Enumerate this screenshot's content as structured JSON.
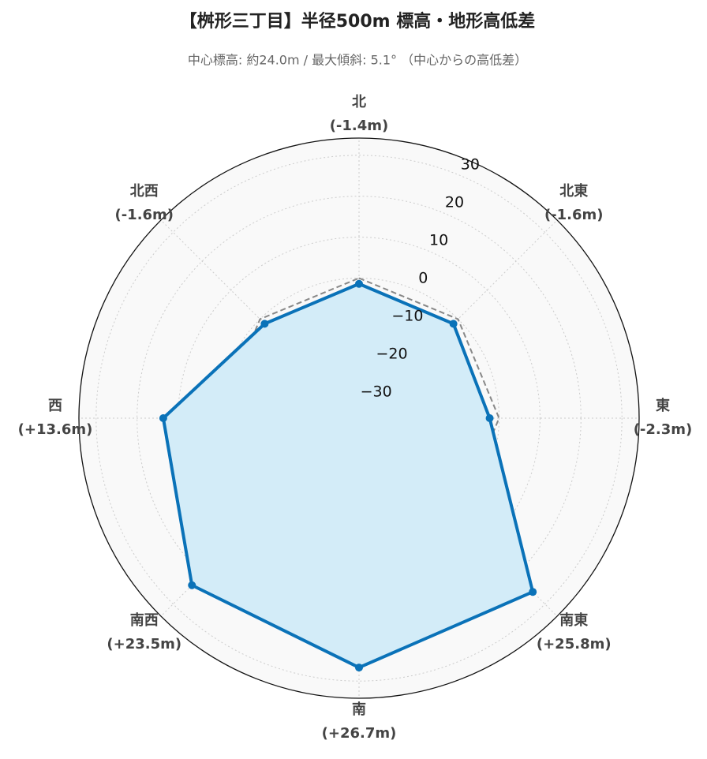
{
  "chart_data": {
    "type": "radar",
    "title": "【桝形三丁目】半径500m 標高・地形高低差",
    "subtitle": "中心標高: 約24.0m / 最大傾斜: 5.1° （中心からの高低差）",
    "categories": [
      "北",
      "北東",
      "東",
      "南東",
      "南",
      "南西",
      "西",
      "北西"
    ],
    "series": [
      {
        "color": "#0a72b8",
        "fill": "#d3ecf8",
        "values": [
          -1.4,
          -1.6,
          -2.3,
          25.8,
          26.7,
          23.5,
          13.6,
          -1.6
        ],
        "value_labels": [
          "(-1.4m)",
          "(-1.6m)",
          "(-2.3m)",
          "(+25.8m)",
          "(+26.7m)",
          "(+23.5m)",
          "(+13.6m)",
          "(-1.6m)"
        ]
      }
    ],
    "ylim": [
      -34.2,
      34.2
    ],
    "yticks": [
      {
        "value": -30,
        "label": "−30"
      },
      {
        "value": -20,
        "label": "−20"
      },
      {
        "value": -10,
        "label": "−10"
      },
      0,
      10,
      20,
      30
    ],
    "reference_line": {
      "value": 0,
      "color": "#888888"
    },
    "grid": true
  }
}
